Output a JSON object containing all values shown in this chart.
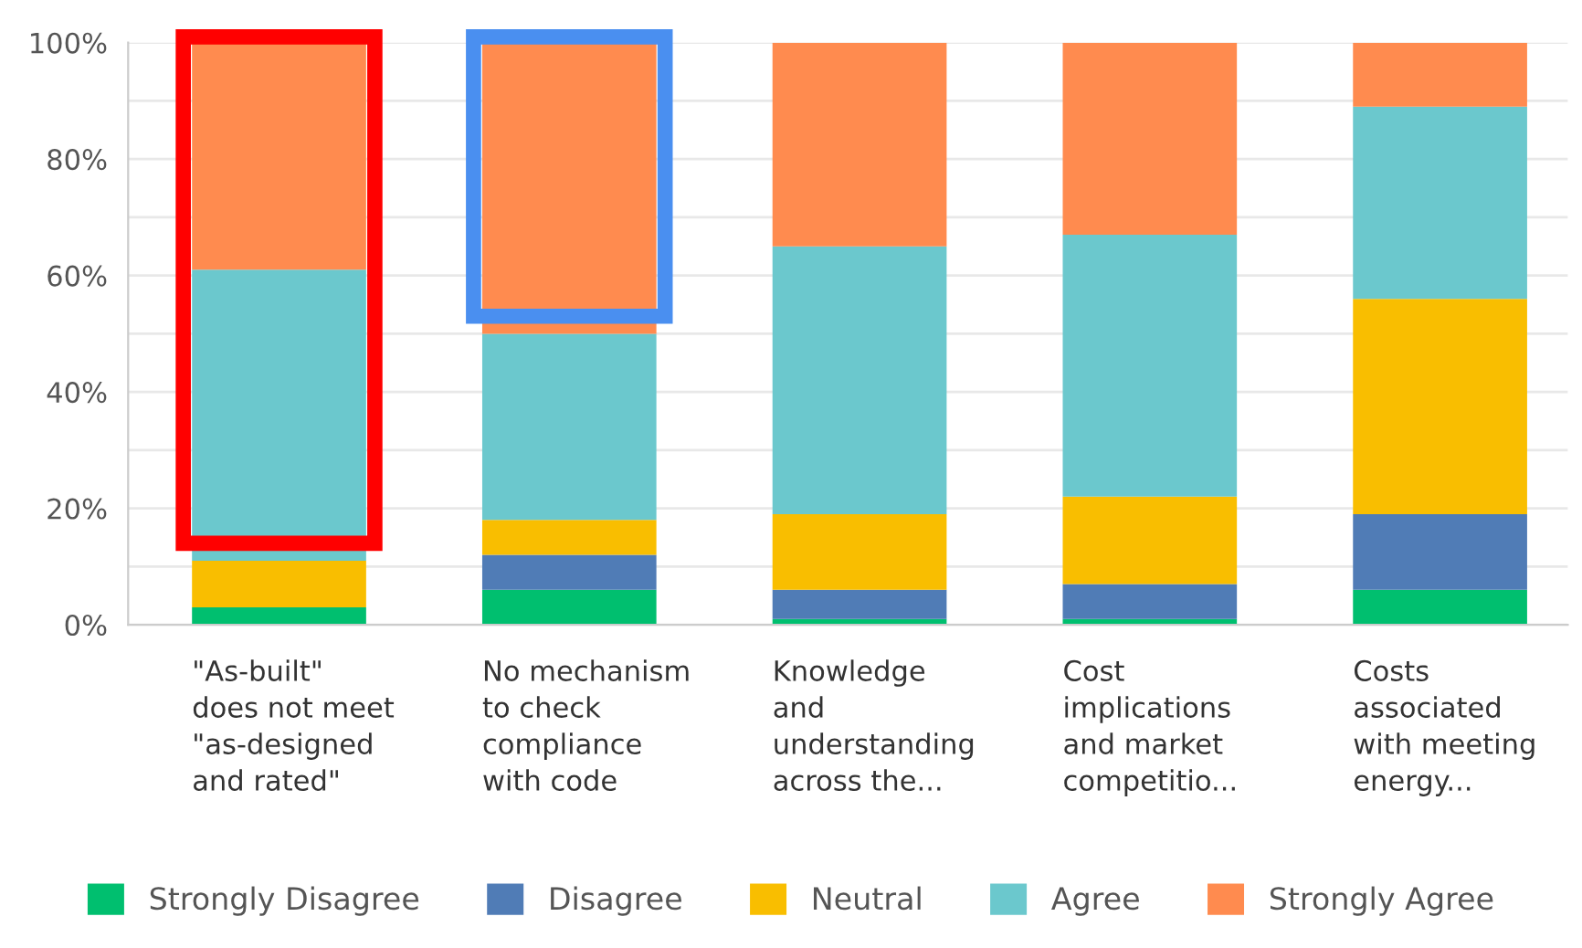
{
  "chart_data": {
    "type": "bar",
    "stacked": true,
    "categories": [
      "\"As-built\"\ndoes not meet\n\"as-designed\nand rated\"",
      "No mechanism\nto check\ncompliance\nwith code",
      "Knowledge\nand\nunderstanding\nacross the...",
      "Cost\nimplications\nand market\ncompetitio...",
      "Costs\nassociated\nwith meeting\nenergy..."
    ],
    "series": [
      {
        "name": "Strongly Disagree",
        "color": "#00bf6f",
        "values": [
          3,
          6,
          1,
          1,
          6
        ]
      },
      {
        "name": "Disagree",
        "color": "#507cb6",
        "values": [
          0,
          6,
          5,
          6,
          13
        ]
      },
      {
        "name": "Neutral",
        "color": "#f9be00",
        "values": [
          8,
          6,
          13,
          15,
          37
        ]
      },
      {
        "name": "Agree",
        "color": "#6bc8cd",
        "values": [
          50,
          32,
          46,
          45,
          33
        ]
      },
      {
        "name": "Strongly Agree",
        "color": "#ff8b4f",
        "values": [
          39,
          50,
          35,
          33,
          11
        ]
      }
    ],
    "ylim": [
      0,
      100
    ],
    "yticks": [
      {
        "value": 0,
        "label": "0%"
      },
      {
        "value": 10,
        "label": null
      },
      {
        "value": 20,
        "label": "20%"
      },
      {
        "value": 30,
        "label": null
      },
      {
        "value": 40,
        "label": "40%"
      },
      {
        "value": 50,
        "label": null
      },
      {
        "value": 60,
        "label": "60%"
      },
      {
        "value": 70,
        "label": null
      },
      {
        "value": 80,
        "label": "80%"
      },
      {
        "value": 90,
        "label": null
      },
      {
        "value": 100,
        "label": "100%"
      }
    ],
    "grid": "y",
    "legend": "bottom"
  }
}
